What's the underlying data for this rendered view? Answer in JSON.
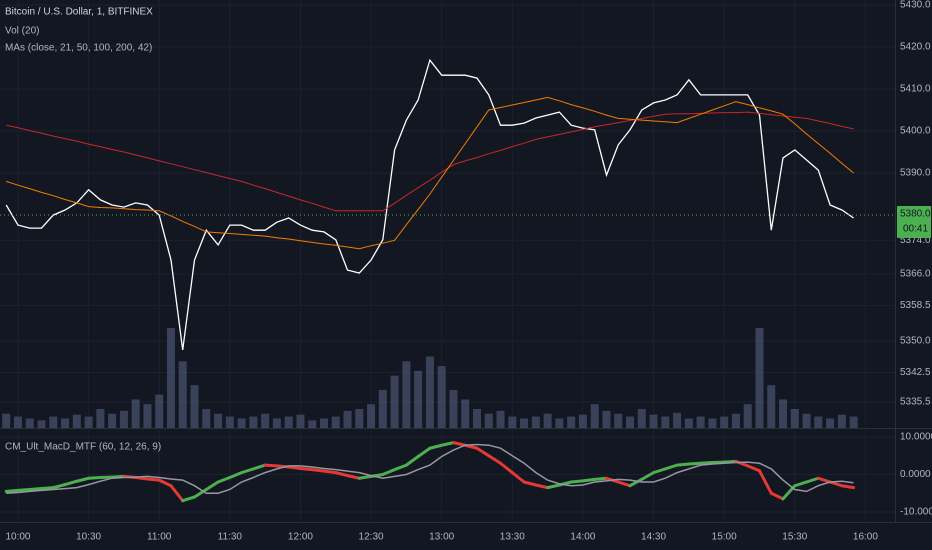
{
  "chart_data": [
    {
      "type": "line",
      "title": "Bitcoin / U.S. Dollar, 1, BITFINEX",
      "ma_label": "MAs (close, 21, 50, 100, 200, 42)",
      "categories": [
        null,
        "10:00",
        null,
        null,
        null,
        null,
        null,
        "10:30",
        null,
        null,
        null,
        null,
        null,
        "11:00",
        null,
        null,
        null,
        null,
        null,
        "11:30",
        null,
        null,
        null,
        null,
        null,
        "12:00",
        null,
        null,
        null,
        null,
        null,
        "12:30",
        null,
        null,
        null,
        null,
        null,
        "13:00",
        null,
        null,
        null,
        null,
        null,
        "13:30",
        null,
        null,
        null,
        null,
        null,
        "14:00",
        null,
        null,
        null,
        null,
        null,
        "14:30",
        null,
        null,
        null,
        null,
        null,
        "15:00",
        null,
        null,
        null,
        null,
        null,
        "15:30",
        null,
        null,
        null,
        null,
        null,
        "16:00"
      ],
      "series": [
        {
          "color": "#ffffff",
          "width": 1.3,
          "values": [
            5382.4,
            5377.6,
            5376.9,
            5376.9,
            5380.0,
            5381.2,
            5382.9,
            5386.0,
            5383.6,
            5382.4,
            5381.9,
            5382.9,
            5382.4,
            5380.0,
            5369.3,
            5347.9,
            5369.3,
            5376.4,
            5372.9,
            5377.6,
            5377.6,
            5376.4,
            5376.4,
            5378.3,
            5379.3,
            5377.6,
            5376.4,
            5376.0,
            5374.1,
            5366.9,
            5366.2,
            5369.3,
            5374.1,
            5395.5,
            5402.6,
            5407.4,
            5416.9,
            5413.3,
            5413.3,
            5413.3,
            5412.6,
            5408.6,
            5401.4,
            5401.4,
            5401.9,
            5403.1,
            5403.8,
            5404.5,
            5401.4,
            5400.7,
            5400.3,
            5389.5,
            5396.7,
            5400.3,
            5405.0,
            5406.7,
            5407.4,
            5408.6,
            5412.2,
            5408.6,
            5408.6,
            5408.6,
            5408.6,
            5408.6,
            5403.8,
            5376.4,
            5393.6,
            5395.5,
            5393.1,
            5390.7,
            5382.4,
            5381.2,
            5379.3,
            null
          ]
        },
        {
          "color": "#c62828",
          "width": 1,
          "values": [
            5401.4,
            5400.8,
            5400.1,
            5399.5,
            5398.8,
            5398.2,
            5397.6,
            5396.9,
            5396.3,
            5395.6,
            5395.0,
            5394.3,
            5393.6,
            5392.9,
            5392.2,
            5391.5,
            5390.8,
            5390.1,
            5389.4,
            5388.7,
            5388.0,
            5387.1,
            5386.3,
            5385.4,
            5384.5,
            5383.6,
            5382.8,
            5381.9,
            5381.0,
            5381.0,
            5381.0,
            5381.0,
            5381.0,
            5382.8,
            5384.7,
            5386.5,
            5388.3,
            5390.2,
            5392.0,
            5392.9,
            5393.7,
            5394.6,
            5395.4,
            5396.3,
            5397.1,
            5398.0,
            5398.6,
            5399.2,
            5399.8,
            5400.4,
            5401.0,
            5401.5,
            5402.0,
            5402.5,
            5403.0,
            5403.5,
            5404.0,
            5404.1,
            5404.1,
            5404.2,
            5404.3,
            5404.4,
            5404.4,
            5404.5,
            5404.2,
            5403.9,
            5403.6,
            5403.3,
            5403.0,
            5402.4,
            5401.8,
            5401.1,
            5400.5,
            null
          ]
        },
        {
          "color": "#f57c00",
          "width": 1,
          "values": [
            5388.0,
            5387.1,
            5386.3,
            5385.4,
            5384.6,
            5383.7,
            5382.9,
            5382.0,
            5381.8,
            5381.7,
            5381.5,
            5381.3,
            5381.2,
            5381.0,
            5379.8,
            5378.5,
            5377.3,
            5376.0,
            5375.8,
            5375.6,
            5375.4,
            5375.2,
            5375.0,
            5374.6,
            5374.3,
            5373.9,
            5373.5,
            5373.1,
            5372.8,
            5372.4,
            5372.0,
            5372.7,
            5373.3,
            5374.0,
            5377.7,
            5381.3,
            5385.0,
            5389.0,
            5393.0,
            5397.0,
            5401.0,
            5405.0,
            5405.6,
            5406.2,
            5406.8,
            5407.4,
            5408.0,
            5407.2,
            5406.3,
            5405.5,
            5404.7,
            5403.8,
            5403.0,
            5402.8,
            5402.6,
            5402.4,
            5402.2,
            5402.0,
            5403.0,
            5404.0,
            5405.0,
            5406.0,
            5407.0,
            5406.3,
            5405.5,
            5404.8,
            5404.0,
            5401.7,
            5399.3,
            5397.0,
            5394.7,
            5392.3,
            5390.0,
            null
          ]
        }
      ],
      "volume": {
        "name": "Vol (20)",
        "color": "#4a5670",
        "values": [
          15,
          12,
          10,
          8,
          12,
          10,
          14,
          12,
          20,
          15,
          18,
          30,
          25,
          35,
          105,
          70,
          45,
          20,
          15,
          12,
          10,
          12,
          15,
          10,
          12,
          14,
          8,
          10,
          12,
          18,
          20,
          25,
          40,
          55,
          70,
          60,
          75,
          65,
          40,
          30,
          20,
          15,
          18,
          12,
          10,
          12,
          15,
          10,
          12,
          14,
          25,
          18,
          15,
          12,
          20,
          14,
          12,
          16,
          10,
          12,
          10,
          12,
          15,
          25,
          105,
          45,
          30,
          20,
          15,
          12,
          10,
          14,
          12,
          null
        ]
      },
      "ylim": [
        5329.3,
        5431.2
      ],
      "yticks": [
        {
          "value": 5430,
          "label": "5430.0"
        },
        {
          "value": 5420,
          "label": "5420.0"
        },
        {
          "value": 5410,
          "label": "5410.0"
        },
        {
          "value": 5400,
          "label": "5400.0"
        },
        {
          "value": 5390,
          "label": "5390.0"
        },
        {
          "value": 5374,
          "label": "5374.0"
        },
        {
          "value": 5366,
          "label": "5366.0"
        },
        {
          "value": 5358.5,
          "label": "5358.5"
        },
        {
          "value": 5350,
          "label": "5350.0"
        },
        {
          "value": 5342.5,
          "label": "5342.5"
        },
        {
          "value": 5335.5,
          "label": "5335.5"
        }
      ],
      "last_price": {
        "value": 5380,
        "label": "5380.0"
      },
      "countdown": "00:41",
      "grid": true
    },
    {
      "type": "line",
      "title": "CM_Ult_MacD_MTF (60, 12, 26, 9)",
      "series": [
        {
          "color": "#4caf50",
          "down_color": "#e53935",
          "width": 3,
          "values": [
            -4.5,
            -4.25,
            -4.0,
            -3.75,
            -3.5,
            -2.7,
            -1.8,
            -1.0,
            -0.8,
            -0.7,
            -0.5,
            -0.8,
            -1.2,
            -1.5,
            -3.0,
            -7.0,
            -6.0,
            -4.0,
            -2.0,
            -0.8,
            0.5,
            1.5,
            2.5,
            2.3,
            2.0,
            1.6,
            1.3,
            0.9,
            0.5,
            -0.3,
            -1.0,
            -0.5,
            0.0,
            1.3,
            2.5,
            4.8,
            7.0,
            7.8,
            8.5,
            7.8,
            7.0,
            5.0,
            3.0,
            0.5,
            -2.0,
            -2.8,
            -3.5,
            -2.8,
            -2.0,
            -1.7,
            -1.3,
            -1.0,
            -2.0,
            -3.0,
            -1.3,
            0.5,
            1.5,
            2.5,
            2.8,
            3.0,
            3.2,
            3.3,
            3.5,
            2.3,
            1.0,
            -5.0,
            -6.5,
            -3.0,
            -2.0,
            -1.0,
            -2.0,
            -3.0,
            -3.5,
            null
          ]
        },
        {
          "color": "#9598a1",
          "width": 1.5,
          "values": [
            -5.0,
            -4.8,
            -4.5,
            -4.25,
            -4.0,
            -3.75,
            -3.5,
            -2.7,
            -1.8,
            -1.0,
            -0.8,
            -0.7,
            -0.5,
            -0.8,
            -1.2,
            -1.5,
            -3.0,
            -5.0,
            -5.0,
            -4.0,
            -2.0,
            -0.8,
            0.5,
            1.5,
            2.3,
            2.3,
            2.0,
            1.6,
            1.3,
            0.9,
            0.5,
            -0.3,
            -1.0,
            -0.5,
            0.0,
            1.3,
            2.5,
            4.8,
            6.5,
            7.8,
            8.0,
            7.8,
            7.0,
            5.0,
            3.0,
            0.5,
            -1.5,
            -2.5,
            -3.0,
            -2.8,
            -2.0,
            -1.7,
            -1.3,
            -1.5,
            -2.0,
            -2.0,
            -1.0,
            0.5,
            1.5,
            2.5,
            2.8,
            3.0,
            3.2,
            3.3,
            3.0,
            1.5,
            -1.5,
            -4.0,
            -4.5,
            -3.0,
            -2.0,
            -1.8,
            -2.2,
            null
          ]
        }
      ],
      "ylim": [
        -12.67,
        12.4
      ],
      "yticks": [
        {
          "value": 10,
          "label": "10.0000"
        },
        {
          "value": 0,
          "label": "0.0000"
        },
        {
          "value": -10,
          "label": "-10.0000"
        }
      ],
      "grid": true
    }
  ]
}
